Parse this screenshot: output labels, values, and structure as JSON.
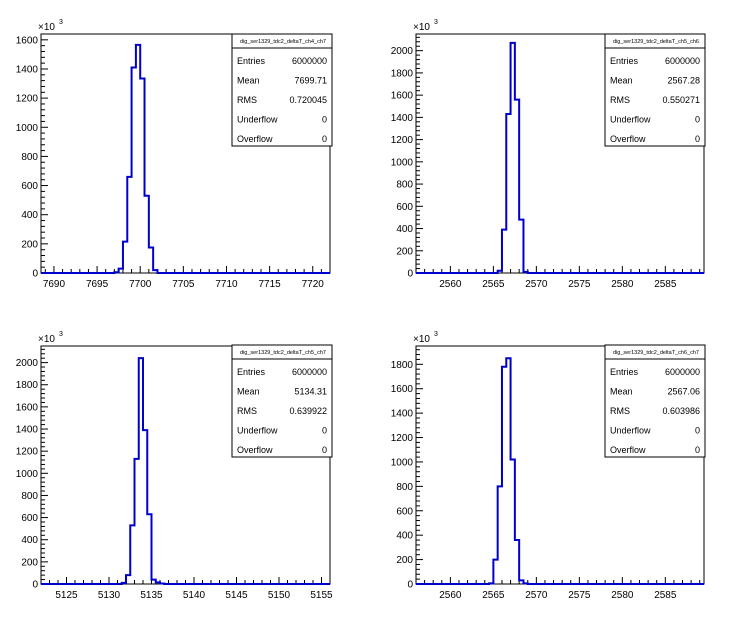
{
  "chart_data": [
    {
      "type": "histogram",
      "title": "",
      "stats_title": "dig_ser1329_tdc2_deltaT_ch4_ch7",
      "stats": [
        {
          "label": "Entries",
          "value": "6000000"
        },
        {
          "label": "Mean",
          "value": "7699.71"
        },
        {
          "label": "RMS",
          "value": "0.720045"
        },
        {
          "label": "Underflow",
          "value": "0"
        },
        {
          "label": "Overflow",
          "value": "0"
        }
      ],
      "y_multiplier": "×10",
      "y_exponent": "3",
      "xlim": [
        7688.5,
        7722
      ],
      "ylim": [
        0,
        1640
      ],
      "xticks": [
        7690,
        7695,
        7700,
        7705,
        7710,
        7715,
        7720
      ],
      "xtick_labels": [
        "7690",
        "7695",
        "7700",
        "7705",
        "7710",
        "7715",
        "7720"
      ],
      "yticks": [
        0,
        200,
        400,
        600,
        800,
        1000,
        1200,
        1400,
        1600
      ],
      "ytick_labels": [
        "0",
        "200",
        "400",
        "600",
        "800",
        "1000",
        "1200",
        "1400",
        "1600"
      ],
      "bin_edges": [
        7697,
        7697.5,
        7698,
        7698.5,
        7699,
        7699.5,
        7700,
        7700.5,
        7701,
        7701.5,
        7702
      ],
      "values": [
        5,
        30,
        215,
        660,
        1410,
        1565,
        1335,
        530,
        175,
        20
      ],
      "color": "#0000cc"
    },
    {
      "type": "histogram",
      "title": "",
      "stats_title": "dig_ser1329_tdc2_deltaT_ch5_ch6",
      "stats": [
        {
          "label": "Entries",
          "value": "6000000"
        },
        {
          "label": "Mean",
          "value": "2567.28"
        },
        {
          "label": "RMS",
          "value": "0.550271"
        },
        {
          "label": "Underflow",
          "value": "0"
        },
        {
          "label": "Overflow",
          "value": "0"
        }
      ],
      "y_multiplier": "×10",
      "y_exponent": "3",
      "xlim": [
        2556,
        2589.5
      ],
      "ylim": [
        0,
        2150
      ],
      "xticks": [
        2560,
        2565,
        2570,
        2575,
        2580,
        2585
      ],
      "xtick_labels": [
        "2560",
        "2565",
        "2570",
        "2575",
        "2580",
        "2585"
      ],
      "yticks": [
        0,
        200,
        400,
        600,
        800,
        1000,
        1200,
        1400,
        1600,
        1800,
        2000
      ],
      "ytick_labels": [
        "0",
        "200",
        "400",
        "600",
        "800",
        "1000",
        "1200",
        "1400",
        "1600",
        "1800",
        "2000"
      ],
      "bin_edges": [
        2565.5,
        2566,
        2566.5,
        2567,
        2567.5,
        2568,
        2568.5,
        2569
      ],
      "values": [
        20,
        390,
        1430,
        2070,
        1560,
        480,
        10
      ],
      "color": "#0000cc"
    },
    {
      "type": "histogram",
      "title": "",
      "stats_title": "dig_ser1329_tdc2_deltaT_ch5_ch7",
      "stats": [
        {
          "label": "Entries",
          "value": "6000000"
        },
        {
          "label": "Mean",
          "value": "5134.31"
        },
        {
          "label": "RMS",
          "value": "0.639922"
        },
        {
          "label": "Underflow",
          "value": "0"
        },
        {
          "label": "Overflow",
          "value": "0"
        }
      ],
      "y_multiplier": "×10",
      "y_exponent": "3",
      "xlim": [
        5122,
        5156
      ],
      "ylim": [
        0,
        2150
      ],
      "xticks": [
        5125,
        5130,
        5135,
        5140,
        5145,
        5150,
        5155
      ],
      "xtick_labels": [
        "5125",
        "5130",
        "5135",
        "5140",
        "5145",
        "5150",
        "5155"
      ],
      "yticks": [
        0,
        200,
        400,
        600,
        800,
        1000,
        1200,
        1400,
        1600,
        1800,
        2000
      ],
      "ytick_labels": [
        "0",
        "200",
        "400",
        "600",
        "800",
        "1000",
        "1200",
        "1400",
        "1600",
        "1800",
        "2000"
      ],
      "bin_edges": [
        5131.5,
        5132,
        5132.5,
        5133,
        5133.5,
        5134,
        5134.5,
        5135,
        5135.5,
        5136,
        5136.5
      ],
      "values": [
        10,
        80,
        530,
        1130,
        2040,
        1390,
        630,
        40,
        15,
        5
      ],
      "color": "#0000cc"
    },
    {
      "type": "histogram",
      "title": "",
      "stats_title": "dig_ser1329_tdc2_deltaT_ch6_ch7",
      "stats": [
        {
          "label": "Entries",
          "value": "6000000"
        },
        {
          "label": "Mean",
          "value": "2567.06"
        },
        {
          "label": "RMS",
          "value": "0.603986"
        },
        {
          "label": "Underflow",
          "value": "0"
        },
        {
          "label": "Overflow",
          "value": "0"
        }
      ],
      "y_multiplier": "×10",
      "y_exponent": "3",
      "xlim": [
        2556,
        2589.5
      ],
      "ylim": [
        0,
        1950
      ],
      "xticks": [
        2560,
        2565,
        2570,
        2575,
        2580,
        2585
      ],
      "xtick_labels": [
        "2560",
        "2565",
        "2570",
        "2575",
        "2580",
        "2585"
      ],
      "yticks": [
        0,
        200,
        400,
        600,
        800,
        1000,
        1200,
        1400,
        1600,
        1800
      ],
      "ytick_labels": [
        "0",
        "200",
        "400",
        "600",
        "800",
        "1000",
        "1200",
        "1400",
        "1600",
        "1800"
      ],
      "bin_edges": [
        2564.5,
        2565,
        2565.5,
        2566,
        2566.5,
        2567,
        2567.5,
        2568,
        2568.5,
        2569
      ],
      "values": [
        5,
        200,
        800,
        1780,
        1850,
        1020,
        360,
        30,
        5
      ],
      "color": "#0000cc"
    }
  ]
}
